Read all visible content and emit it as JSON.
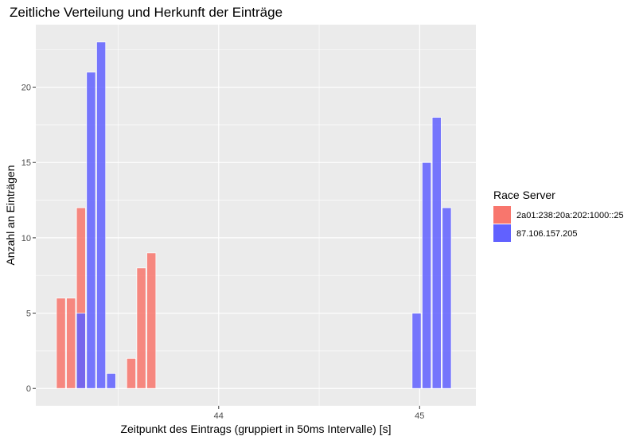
{
  "chart_data": {
    "type": "bar",
    "title": "Zeitliche Verteilung und Herkunft der Einträge",
    "xlabel": "Zeitpunkt des Eintrags (gruppiert in 50ms Intervalle) [s]",
    "ylabel": "Anzahl an Einträgen",
    "xlim": [
      43.09,
      45.28
    ],
    "ylim": [
      -1.15,
      24.15
    ],
    "x_ticks": [
      44,
      45
    ],
    "y_ticks": [
      0,
      5,
      10,
      15,
      20
    ],
    "grid": true,
    "bar_width": 0.045,
    "legend": {
      "title": "Race Server",
      "position": "right"
    },
    "series": [
      {
        "name": "2a01:238:20a:202:1000::25",
        "color": "#F8766D",
        "points": [
          {
            "x": 43.215,
            "y": 6
          },
          {
            "x": 43.265,
            "y": 6
          },
          {
            "x": 43.315,
            "y": 12
          },
          {
            "x": 43.565,
            "y": 2
          },
          {
            "x": 43.615,
            "y": 8
          },
          {
            "x": 43.665,
            "y": 9
          }
        ]
      },
      {
        "name": "87.106.157.205",
        "color": "#6161FF",
        "points": [
          {
            "x": 43.315,
            "y": 5
          },
          {
            "x": 43.365,
            "y": 21
          },
          {
            "x": 43.415,
            "y": 23
          },
          {
            "x": 43.465,
            "y": 1
          },
          {
            "x": 44.985,
            "y": 5
          },
          {
            "x": 45.035,
            "y": 15
          },
          {
            "x": 45.085,
            "y": 18
          },
          {
            "x": 45.135,
            "y": 12
          }
        ]
      }
    ]
  }
}
